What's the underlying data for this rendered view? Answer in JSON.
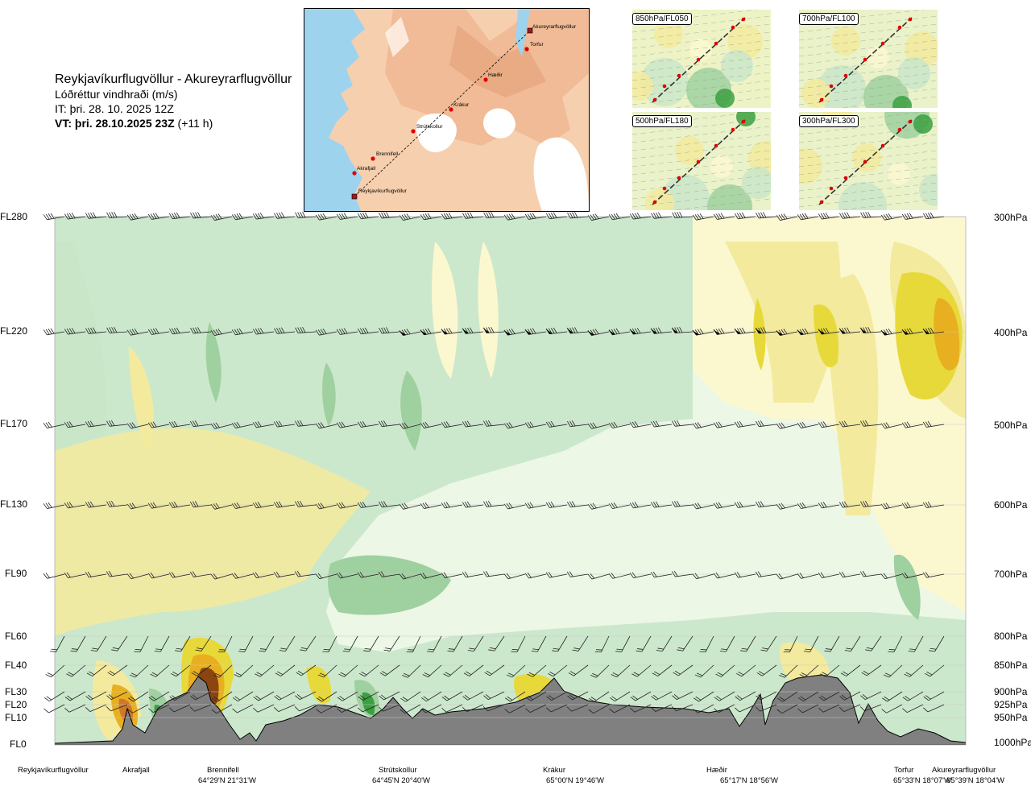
{
  "header": {
    "title": "Reykjavíkurflugvöllur - Akureyrarflugvöllur",
    "subtitle": "Lóðréttur vindhraði (m/s)",
    "it": "IT: þri. 28. 10. 2025 12Z",
    "vt": "VT: þri. 28.10.2025 23Z",
    "vt_offset": "(+11 h)"
  },
  "route_map": {
    "points": [
      {
        "name": "Akureyrarflugvöllur",
        "airport": true
      },
      {
        "name": "Torfur"
      },
      {
        "name": "Hæðir"
      },
      {
        "name": "Krákur"
      },
      {
        "name": "Strútskollur"
      },
      {
        "name": "Brennifell"
      },
      {
        "name": "Akrafjall"
      },
      {
        "name": "Reykjavíkurflugvöllur",
        "airport": true
      }
    ]
  },
  "level_maps": [
    {
      "label": "850hPa/FL050"
    },
    {
      "label": "700hPa/FL100"
    },
    {
      "label": "500hPa/FL180"
    },
    {
      "label": "300hPa/FL300"
    }
  ],
  "chart_data": {
    "type": "heatmap",
    "title": "Lóðréttur vindhraði (m/s)",
    "flight_levels": [
      "FL280",
      "FL220",
      "FL170",
      "FL130",
      "FL90",
      "FL60",
      "FL40",
      "FL30",
      "FL20",
      "FL10",
      "FL0"
    ],
    "pressure_levels": [
      "300hPa",
      "400hPa",
      "500hPa",
      "600hPa",
      "700hPa",
      "800hPa",
      "850hPa",
      "900hPa",
      "925hPa",
      "950hPa",
      "1000hPa"
    ],
    "pressure_values": [
      300,
      400,
      500,
      600,
      700,
      800,
      850,
      900,
      925,
      950,
      1000
    ],
    "ylim": [
      1000,
      300
    ],
    "waypoints": [
      {
        "name": "Reykjavíkurflugvöllur",
        "coord": ""
      },
      {
        "name": "Akrafjall",
        "coord": ""
      },
      {
        "name": "Brennifell",
        "coord": "64°29'N 21°31'W"
      },
      {
        "name": "Strútskollur",
        "coord": "64°45'N 20°40'W"
      },
      {
        "name": "Krákur",
        "coord": "65°00'N 19°46'W"
      },
      {
        "name": "Hæðir",
        "coord": "65°17'N 18°56'W"
      },
      {
        "name": "Torfur",
        "coord": "65°33'N 18°07'W"
      },
      {
        "name": "Akureyrarflugvöllur",
        "coord": "65°39'N 18°04'W"
      }
    ],
    "colors": {
      "strong_down": "#c9e6c9",
      "weak": "#ecf7e6",
      "weak_up": "#fbf8d0",
      "up": "#f3ea9e",
      "strong_up": "#e8d93a",
      "very_strong_up": "#e8b020",
      "extreme_up": "#8a4510",
      "down2": "#9fd09f",
      "down3": "#3aa040",
      "terrain": "#808080"
    }
  }
}
